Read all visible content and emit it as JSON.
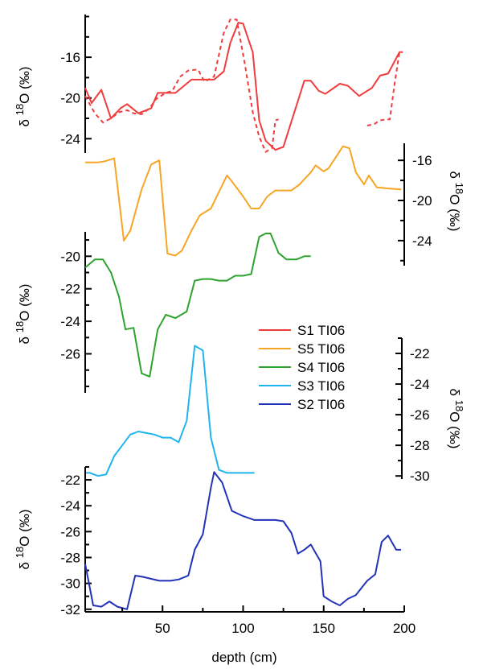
{
  "chart_data": {
    "type": "line",
    "xlabel": "depth (cm)",
    "x_ticks": [
      50,
      100,
      150,
      200
    ],
    "xlim": [
      2,
      200
    ],
    "panels": [
      {
        "id": "S1",
        "ylabel": "δ18O (‰)",
        "ylabel_side": "left",
        "y_ticks": [
          -16,
          -20,
          -24
        ],
        "ylim": [
          -25.4,
          -11.8
        ],
        "series": [
          {
            "name": "S1 TI06",
            "color": "#f03c3c",
            "style": "solid",
            "points": [
              [
                2,
                -19
              ],
              [
                6,
                -20.5
              ],
              [
                12,
                -19.2
              ],
              [
                18,
                -22
              ],
              [
                24,
                -21
              ],
              [
                28,
                -20.6
              ],
              [
                35,
                -21.5
              ],
              [
                43,
                -21
              ],
              [
                47,
                -19.5
              ],
              [
                58,
                -19.5
              ],
              [
                68,
                -18.2
              ],
              [
                75,
                -18.2
              ],
              [
                82,
                -18.2
              ],
              [
                88,
                -17.4
              ],
              [
                92,
                -14.6
              ],
              [
                97,
                -12.6
              ],
              [
                100,
                -12.7
              ],
              [
                106,
                -15.5
              ],
              [
                110,
                -22.2
              ],
              [
                114,
                -24.2
              ],
              [
                120,
                -25.1
              ],
              [
                125,
                -24.8
              ],
              [
                138,
                -18.3
              ],
              [
                142,
                -18.3
              ],
              [
                147,
                -19.3
              ],
              [
                151,
                -19.6
              ],
              [
                160,
                -18.6
              ],
              [
                165,
                -18.8
              ],
              [
                172,
                -19.8
              ],
              [
                180,
                -19
              ],
              [
                185,
                -17.8
              ],
              [
                190,
                -17.6
              ],
              [
                197,
                -15.5
              ],
              [
                199,
                -15.5
              ]
            ]
          },
          {
            "name": "",
            "color": "#f03c3c",
            "style": "dashed",
            "points": [
              [
                2,
                -19.8
              ],
              [
                8,
                -21.5
              ],
              [
                13,
                -22.4
              ],
              [
                18,
                -22
              ],
              [
                23,
                -21.4
              ],
              [
                28,
                -21.2
              ],
              [
                32,
                -21.5
              ],
              [
                37,
                -21.6
              ],
              [
                42,
                -21
              ],
              [
                46,
                -20.1
              ],
              [
                52,
                -19.5
              ],
              [
                56,
                -19.3
              ],
              [
                61,
                -17.9
              ],
              [
                66,
                -17.3
              ],
              [
                72,
                -17.2
              ],
              [
                76,
                -18.4
              ],
              [
                82,
                -17.9
              ],
              [
                88,
                -13.6
              ],
              [
                92,
                -12.3
              ],
              [
                96,
                -12.3
              ],
              [
                101,
                -16.6
              ],
              [
                106,
                -21.4
              ],
              [
                110,
                -23.8
              ],
              [
                114,
                -25.3
              ],
              [
                118,
                -24.9
              ],
              [
                120,
                -22.2
              ],
              [
                122,
                -22.1
              ]
            ]
          },
          {
            "name": "",
            "color": "#f03c3c",
            "style": "dashed",
            "points": [
              [
                177,
                -22.7
              ],
              [
                181,
                -22.6
              ],
              [
                185,
                -22.2
              ],
              [
                189,
                -22.1
              ],
              [
                191,
                -22.1
              ],
              [
                194,
                -18.6
              ],
              [
                197,
                -15.5
              ],
              [
                199,
                -15.5
              ]
            ]
          }
        ]
      },
      {
        "id": "S5",
        "ylabel": "δ18O (‰)",
        "ylabel_side": "right",
        "y_ticks": [
          -16,
          -20,
          -24
        ],
        "ylim": [
          -26.5,
          -14.3
        ],
        "series": [
          {
            "name": "S5 TI06",
            "color": "#f7a524",
            "style": "solid",
            "points": [
              [
                2,
                -16.2
              ],
              [
                10,
                -16.2
              ],
              [
                14,
                -16.1
              ],
              [
                20,
                -15.8
              ],
              [
                26,
                -24
              ],
              [
                30,
                -23
              ],
              [
                37,
                -18.9
              ],
              [
                43,
                -16.4
              ],
              [
                48,
                -16
              ],
              [
                53,
                -25.3
              ],
              [
                58,
                -25.5
              ],
              [
                62,
                -25
              ],
              [
                68,
                -23
              ],
              [
                73,
                -21.5
              ],
              [
                80,
                -20.8
              ],
              [
                90,
                -17.5
              ],
              [
                93,
                -18.1
              ],
              [
                100,
                -19.6
              ],
              [
                105,
                -20.8
              ],
              [
                110,
                -20.8
              ],
              [
                115,
                -19.6
              ],
              [
                120,
                -19
              ],
              [
                125,
                -19
              ],
              [
                130,
                -19
              ],
              [
                135,
                -18.4
              ],
              [
                142,
                -17.2
              ],
              [
                145,
                -16.5
              ],
              [
                150,
                -17.1
              ],
              [
                153,
                -16.8
              ],
              [
                162,
                -14.6
              ],
              [
                166,
                -14.8
              ],
              [
                170,
                -17.2
              ],
              [
                175,
                -18.4
              ],
              [
                178,
                -17.5
              ],
              [
                183,
                -18.7
              ],
              [
                190,
                -18.8
              ],
              [
                198,
                -18.9
              ]
            ]
          }
        ]
      },
      {
        "id": "S4",
        "ylabel": "δ18O (‰)",
        "ylabel_side": "left",
        "y_ticks": [
          -20,
          -22,
          -24,
          -26
        ],
        "ylim": [
          -28.4,
          -18.5
        ],
        "series": [
          {
            "name": "S4 TI06",
            "color": "#2ea32e",
            "style": "solid",
            "points": [
              [
                2,
                -20.7
              ],
              [
                8,
                -20.2
              ],
              [
                13,
                -20.2
              ],
              [
                18,
                -21
              ],
              [
                23,
                -22.5
              ],
              [
                27,
                -24.5
              ],
              [
                32,
                -24.4
              ],
              [
                37,
                -27.2
              ],
              [
                42,
                -27.4
              ],
              [
                47,
                -24.5
              ],
              [
                52,
                -23.6
              ],
              [
                58,
                -23.8
              ],
              [
                65,
                -23.4
              ],
              [
                70,
                -21.5
              ],
              [
                75,
                -21.4
              ],
              [
                80,
                -21.4
              ],
              [
                85,
                -21.5
              ],
              [
                90,
                -21.5
              ],
              [
                95,
                -21.2
              ],
              [
                100,
                -21.2
              ],
              [
                105,
                -21.1
              ],
              [
                110,
                -18.8
              ],
              [
                114,
                -18.6
              ],
              [
                117,
                -18.6
              ],
              [
                122,
                -19.8
              ],
              [
                127,
                -20.2
              ],
              [
                133,
                -20.2
              ],
              [
                138,
                -20
              ],
              [
                142,
                -20
              ]
            ]
          }
        ]
      },
      {
        "id": "S3",
        "ylabel": "δ18O (‰)",
        "ylabel_side": "right",
        "y_ticks": [
          -22,
          -24,
          -26,
          -28,
          -30
        ],
        "ylim": [
          -30.2,
          -21
        ],
        "series": [
          {
            "name": "S3 TI06",
            "color": "#1fb4ee",
            "style": "solid",
            "points": [
              [
                2,
                -29.8
              ],
              [
                5,
                -29.8
              ],
              [
                10,
                -30
              ],
              [
                15,
                -29.9
              ],
              [
                20,
                -28.7
              ],
              [
                25,
                -28
              ],
              [
                30,
                -27.3
              ],
              [
                35,
                -27.1
              ],
              [
                40,
                -27.2
              ],
              [
                45,
                -27.3
              ],
              [
                50,
                -27.5
              ],
              [
                55,
                -27.5
              ],
              [
                60,
                -27.8
              ],
              [
                65,
                -26.4
              ],
              [
                70,
                -21.5
              ],
              [
                75,
                -21.8
              ],
              [
                80,
                -27.5
              ],
              [
                85,
                -29.6
              ],
              [
                90,
                -29.8
              ],
              [
                100,
                -29.8
              ],
              [
                107,
                -29.8
              ]
            ]
          }
        ]
      },
      {
        "id": "S2",
        "ylabel": "δ18O (‰)",
        "ylabel_side": "left",
        "y_ticks": [
          -22,
          -24,
          -26,
          -28,
          -30,
          -32
        ],
        "ylim": [
          -32.2,
          -21
        ],
        "series": [
          {
            "name": "S2 TI06",
            "color": "#2233b8",
            "style": "solid",
            "points": [
              [
                2,
                -28.5
              ],
              [
                7,
                -31.7
              ],
              [
                12,
                -31.8
              ],
              [
                17,
                -31.4
              ],
              [
                22,
                -31.8
              ],
              [
                28,
                -32
              ],
              [
                33,
                -29.4
              ],
              [
                38,
                -29.5
              ],
              [
                48,
                -29.8
              ],
              [
                55,
                -29.8
              ],
              [
                60,
                -29.7
              ],
              [
                66,
                -29.4
              ],
              [
                70,
                -27.4
              ],
              [
                75,
                -26.2
              ],
              [
                80,
                -22.6
              ],
              [
                82,
                -21.4
              ],
              [
                87,
                -22.2
              ],
              [
                93,
                -24.4
              ],
              [
                100,
                -24.8
              ],
              [
                107,
                -25.1
              ],
              [
                115,
                -25.1
              ],
              [
                120,
                -25.1
              ],
              [
                125,
                -25.2
              ],
              [
                130,
                -26.1
              ],
              [
                134,
                -27.7
              ],
              [
                138,
                -27.4
              ],
              [
                142,
                -27
              ],
              [
                148,
                -28.3
              ],
              [
                150,
                -31
              ],
              [
                155,
                -31.4
              ],
              [
                160,
                -31.7
              ],
              [
                165,
                -31.2
              ],
              [
                170,
                -30.9
              ],
              [
                177,
                -29.8
              ],
              [
                182,
                -29.3
              ],
              [
                186,
                -26.8
              ],
              [
                190,
                -26.3
              ],
              [
                195,
                -27.4
              ],
              [
                198,
                -27.4
              ]
            ]
          }
        ]
      }
    ],
    "legend": {
      "position": "center-right",
      "entries": [
        {
          "label": "S1 TI06",
          "color": "#f03c3c"
        },
        {
          "label": "S5 TI06",
          "color": "#f7a524"
        },
        {
          "label": "S4 TI06",
          "color": "#2ea32e"
        },
        {
          "label": "S3 TI06",
          "color": "#1fb4ee"
        },
        {
          "label": "S2 TI06",
          "color": "#2233b8"
        }
      ]
    }
  }
}
